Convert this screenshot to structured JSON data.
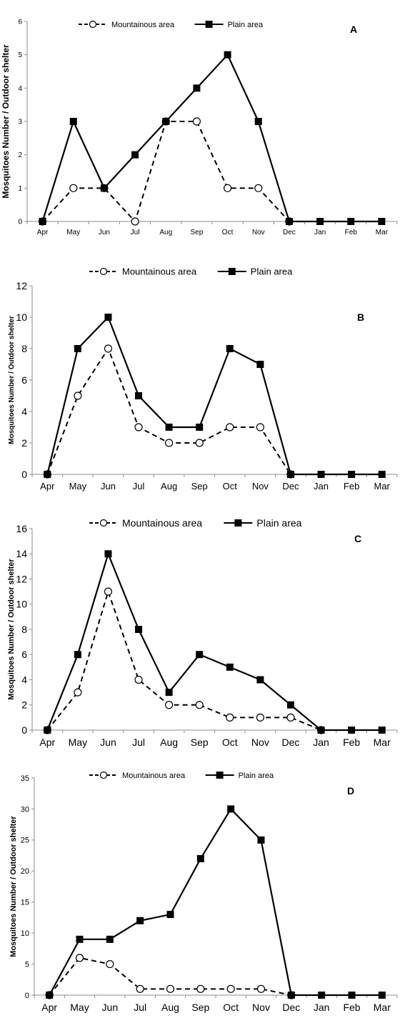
{
  "chart_data": [
    {
      "type": "line",
      "panel_label": "A",
      "categories": [
        "Apr",
        "May",
        "Jun",
        "Jul",
        "Aug",
        "Sep",
        "Oct",
        "Nov",
        "Dec",
        "Jan",
        "Feb",
        "Mar"
      ],
      "ylabel": "Mosquitoes Number / Outdoor shelter",
      "ylim": [
        0,
        6
      ],
      "yticks": [
        0,
        1,
        2,
        3,
        4,
        5,
        6
      ],
      "legend_position": "top",
      "series": [
        {
          "name": "Mountainous area",
          "style": "dashed",
          "marker": "open-circle",
          "values": [
            0,
            1,
            1,
            0,
            3,
            3,
            1,
            1,
            0,
            null,
            null,
            null
          ]
        },
        {
          "name": "Plain area",
          "style": "solid",
          "marker": "filled-square",
          "values": [
            0,
            3,
            1,
            2,
            3,
            4,
            5,
            3,
            0,
            0,
            0,
            0
          ]
        }
      ]
    },
    {
      "type": "line",
      "panel_label": "B",
      "categories": [
        "Apr",
        "May",
        "Jun",
        "Jul",
        "Aug",
        "Sep",
        "Oct",
        "Nov",
        "Dec",
        "Jan",
        "Feb",
        "Mar"
      ],
      "ylabel": "Mosquitoes Number / Outdoor shelter",
      "ylim": [
        0,
        12
      ],
      "yticks": [
        0,
        2,
        4,
        6,
        8,
        10,
        12
      ],
      "legend_position": "top",
      "series": [
        {
          "name": "Mountainous area",
          "style": "dashed",
          "marker": "open-circle",
          "values": [
            0,
            5,
            8,
            3,
            2,
            2,
            3,
            3,
            0,
            null,
            null,
            null
          ]
        },
        {
          "name": "Plain area",
          "style": "solid",
          "marker": "filled-square",
          "values": [
            0,
            8,
            10,
            5,
            3,
            3,
            8,
            7,
            0,
            0,
            0,
            0
          ]
        }
      ]
    },
    {
      "type": "line",
      "panel_label": "C",
      "categories": [
        "Apr",
        "May",
        "Jun",
        "Jul",
        "Aug",
        "Sep",
        "Oct",
        "Nov",
        "Dec",
        "Jan",
        "Feb",
        "Mar"
      ],
      "ylabel": "Mosquitoes Number / Outdoor shelter",
      "ylim": [
        0,
        16
      ],
      "yticks": [
        0,
        2,
        4,
        6,
        8,
        10,
        12,
        14,
        16
      ],
      "legend_position": "top",
      "series": [
        {
          "name": "Mountainous area",
          "style": "dashed",
          "marker": "open-circle",
          "values": [
            0,
            3,
            11,
            4,
            2,
            2,
            1,
            1,
            1,
            0,
            null,
            null
          ]
        },
        {
          "name": "Plain area",
          "style": "solid",
          "marker": "filled-square",
          "values": [
            0,
            6,
            14,
            8,
            3,
            6,
            5,
            4,
            2,
            0,
            0,
            0
          ]
        }
      ]
    },
    {
      "type": "line",
      "panel_label": "D",
      "categories": [
        "Apr",
        "May",
        "Jun",
        "Jul",
        "Aug",
        "Sep",
        "Oct",
        "Nov",
        "Dec",
        "Jan",
        "Feb",
        "Mar"
      ],
      "ylabel": "Mosquitoes Number / Outdoor shelter",
      "ylim": [
        0,
        35
      ],
      "yticks": [
        0,
        5,
        10,
        15,
        20,
        25,
        30,
        35
      ],
      "legend_position": "top",
      "series": [
        {
          "name": "Mountainous area",
          "style": "dashed",
          "marker": "open-circle",
          "values": [
            0,
            6,
            5,
            1,
            1,
            1,
            1,
            1,
            0,
            null,
            null,
            null
          ]
        },
        {
          "name": "Plain area",
          "style": "solid",
          "marker": "filled-square",
          "values": [
            0,
            9,
            9,
            12,
            13,
            22,
            30,
            25,
            0,
            0,
            0,
            0
          ]
        }
      ]
    }
  ]
}
